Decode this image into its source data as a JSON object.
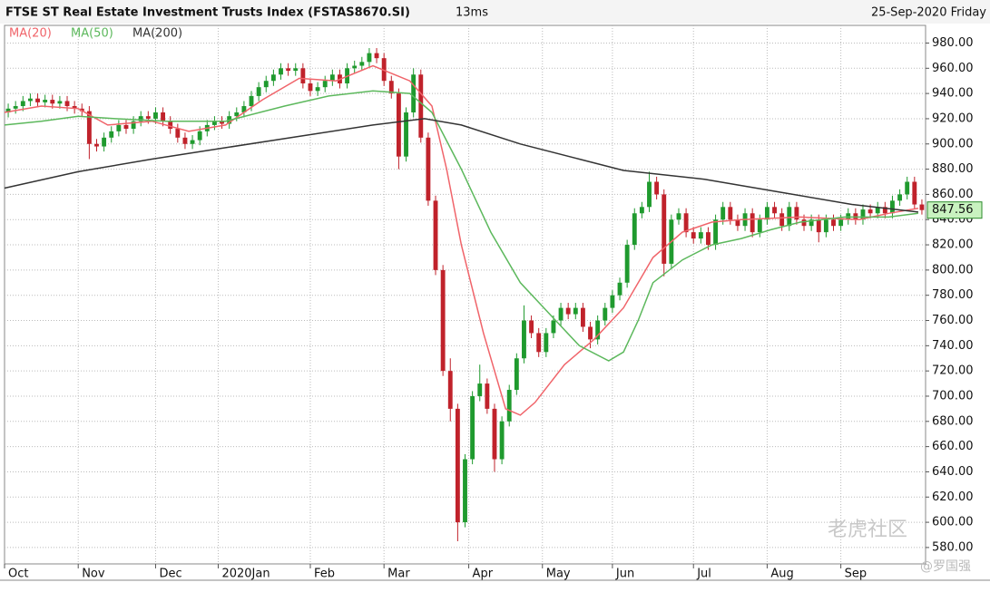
{
  "chart_data": {
    "type": "candlestick",
    "title": "FTSE ST Real Estate Investment Trusts Index (FSTAS8670.SI)",
    "timing": "13ms",
    "date_label": "25-Sep-2020 Friday",
    "watermark": "老虎社区",
    "credit": "@罗国强",
    "up_color": "#1f9a2e",
    "down_color": "#c0222b",
    "grid": true,
    "xlim": [
      0,
      125
    ],
    "xticks": [
      {
        "value": 0,
        "label": "Oct"
      },
      {
        "value": 10,
        "label": "Nov"
      },
      {
        "value": 20.5,
        "label": "Dec"
      },
      {
        "value": 29,
        "label": "2020Jan"
      },
      {
        "value": 41.5,
        "label": "Feb"
      },
      {
        "value": 51.5,
        "label": "Mar"
      },
      {
        "value": 63,
        "label": "Apr"
      },
      {
        "value": 73,
        "label": "May"
      },
      {
        "value": 82.5,
        "label": "Jun"
      },
      {
        "value": 93.5,
        "label": "Jul"
      },
      {
        "value": 103.5,
        "label": "Aug"
      },
      {
        "value": 113.5,
        "label": "Sep"
      }
    ],
    "ylim": [
      567,
      994
    ],
    "yticks": [
      {
        "value": 580,
        "label": "580.00"
      },
      {
        "value": 600,
        "label": "600.00"
      },
      {
        "value": 620,
        "label": "620.00"
      },
      {
        "value": 640,
        "label": "640.00"
      },
      {
        "value": 660,
        "label": "660.00"
      },
      {
        "value": 680,
        "label": "680.00"
      },
      {
        "value": 700,
        "label": "700.00"
      },
      {
        "value": 720,
        "label": "720.00"
      },
      {
        "value": 740,
        "label": "740.00"
      },
      {
        "value": 760,
        "label": "760.00"
      },
      {
        "value": 780,
        "label": "780.00"
      },
      {
        "value": 800,
        "label": "800.00"
      },
      {
        "value": 820,
        "label": "820.00"
      },
      {
        "value": 840,
        "label": "840.00"
      },
      {
        "value": 860,
        "label": "860.00"
      },
      {
        "value": 880,
        "label": "880.00"
      },
      {
        "value": 900,
        "label": "900.00"
      },
      {
        "value": 920,
        "label": "920.00"
      },
      {
        "value": 940,
        "label": "940.00"
      },
      {
        "value": 960,
        "label": "960.00"
      },
      {
        "value": 980,
        "label": "980.00"
      }
    ],
    "candles": {
      "open": [
        925,
        928,
        930,
        934,
        936,
        933,
        935,
        932,
        934,
        930,
        928,
        926,
        900,
        898,
        905,
        910,
        915,
        912,
        918,
        922,
        920,
        925,
        918,
        912,
        905,
        900,
        903,
        910,
        915,
        918,
        916,
        922,
        925,
        930,
        938,
        945,
        950,
        955,
        960,
        958,
        960,
        948,
        942,
        945,
        950,
        955,
        948,
        960,
        962,
        965,
        972,
        968,
        950,
        940,
        890,
        925,
        955,
        905,
        855,
        800,
        720,
        690,
        600,
        650,
        700,
        710,
        690,
        650,
        680,
        705,
        730,
        760,
        750,
        735,
        750,
        760,
        770,
        765,
        770,
        755,
        745,
        760,
        770,
        780,
        790,
        820,
        845,
        850,
        870,
        860,
        805,
        840,
        845,
        830,
        825,
        830,
        820,
        840,
        850,
        840,
        835,
        845,
        830,
        840,
        850,
        845,
        835,
        850,
        840,
        835,
        840,
        830,
        840,
        835,
        840,
        845,
        840,
        848,
        845,
        850,
        845,
        855,
        860,
        870,
        852
      ],
      "high": [
        932,
        934,
        938,
        940,
        940,
        939,
        939,
        938,
        938,
        934,
        932,
        930,
        904,
        909,
        914,
        919,
        919,
        922,
        926,
        926,
        929,
        929,
        922,
        916,
        909,
        907,
        914,
        919,
        922,
        922,
        926,
        929,
        934,
        942,
        949,
        954,
        959,
        964,
        964,
        964,
        964,
        952,
        949,
        954,
        959,
        959,
        964,
        966,
        969,
        976,
        976,
        972,
        954,
        944,
        929,
        960,
        959,
        909,
        859,
        804,
        730,
        694,
        654,
        704,
        725,
        714,
        694,
        684,
        709,
        734,
        772,
        764,
        754,
        754,
        764,
        774,
        774,
        774,
        774,
        759,
        764,
        774,
        784,
        794,
        824,
        849,
        854,
        878,
        874,
        864,
        844,
        849,
        849,
        834,
        834,
        834,
        844,
        854,
        854,
        844,
        849,
        849,
        844,
        854,
        854,
        849,
        854,
        854,
        844,
        844,
        844,
        844,
        844,
        844,
        849,
        849,
        852,
        852,
        854,
        854,
        859,
        864,
        874,
        874,
        856
      ],
      "low": [
        921,
        924,
        926,
        930,
        929,
        929,
        928,
        928,
        926,
        924,
        922,
        888,
        894,
        894,
        901,
        906,
        908,
        908,
        914,
        916,
        916,
        914,
        908,
        901,
        896,
        896,
        899,
        906,
        911,
        912,
        912,
        918,
        921,
        926,
        934,
        941,
        946,
        951,
        954,
        954,
        944,
        938,
        938,
        941,
        946,
        944,
        944,
        956,
        958,
        961,
        964,
        946,
        936,
        880,
        886,
        921,
        901,
        851,
        796,
        716,
        680,
        585,
        596,
        646,
        696,
        686,
        640,
        646,
        676,
        701,
        726,
        746,
        731,
        731,
        746,
        756,
        761,
        761,
        751,
        738,
        741,
        756,
        766,
        776,
        786,
        816,
        841,
        846,
        856,
        795,
        801,
        836,
        826,
        821,
        821,
        816,
        816,
        836,
        836,
        831,
        831,
        826,
        826,
        836,
        841,
        831,
        831,
        836,
        831,
        831,
        822,
        826,
        831,
        831,
        836,
        836,
        836,
        841,
        841,
        841,
        841,
        851,
        856,
        848,
        844
      ],
      "close": [
        928,
        930,
        934,
        936,
        933,
        935,
        932,
        934,
        930,
        928,
        926,
        900,
        898,
        905,
        910,
        915,
        912,
        918,
        922,
        920,
        925,
        918,
        912,
        905,
        900,
        903,
        910,
        915,
        918,
        916,
        922,
        925,
        930,
        938,
        945,
        950,
        955,
        960,
        958,
        960,
        948,
        942,
        945,
        950,
        955,
        948,
        960,
        962,
        965,
        972,
        968,
        950,
        940,
        890,
        925,
        955,
        905,
        855,
        800,
        720,
        690,
        600,
        650,
        700,
        710,
        690,
        650,
        680,
        705,
        730,
        760,
        750,
        735,
        750,
        760,
        770,
        765,
        770,
        755,
        745,
        760,
        770,
        780,
        790,
        820,
        845,
        850,
        870,
        860,
        805,
        840,
        845,
        830,
        825,
        830,
        820,
        840,
        850,
        840,
        835,
        845,
        830,
        840,
        850,
        845,
        835,
        850,
        840,
        835,
        840,
        830,
        840,
        835,
        840,
        845,
        840,
        848,
        845,
        850,
        845,
        855,
        860,
        870,
        852,
        847.56
      ]
    },
    "last_price": {
      "value": 847.56,
      "label": "847.56"
    },
    "series": [
      {
        "name": "MA(20)",
        "color": "#f0646a",
        "x": [
          0,
          5,
          10,
          14,
          20,
          25,
          30,
          35,
          40,
          45,
          50,
          55,
          58,
          60,
          62,
          65,
          68,
          70,
          72,
          76,
          80,
          84,
          88,
          92,
          96,
          100,
          108,
          116,
          120,
          124
        ],
        "values": [
          925,
          930,
          928,
          915,
          918,
          910,
          915,
          935,
          952,
          950,
          962,
          950,
          930,
          880,
          820,
          750,
          690,
          685,
          695,
          725,
          745,
          770,
          810,
          830,
          838,
          840,
          842,
          840,
          845,
          849
        ]
      },
      {
        "name": "MA(50)",
        "color": "#5cb85c",
        "x": [
          0,
          5,
          10,
          15,
          22,
          30,
          38,
          44,
          50,
          55,
          58,
          62,
          66,
          70,
          74,
          78,
          82,
          84,
          86,
          88,
          92,
          96,
          100,
          104,
          108,
          114,
          120,
          124
        ],
        "values": [
          915,
          918,
          922,
          920,
          918,
          918,
          930,
          938,
          942,
          940,
          925,
          880,
          830,
          790,
          765,
          740,
          728,
          735,
          760,
          790,
          808,
          820,
          825,
          832,
          838,
          842,
          842,
          845
        ]
      },
      {
        "name": "MA(200)",
        "color": "#333333",
        "x": [
          0,
          10,
          20,
          30,
          40,
          50,
          57,
          62,
          70,
          78,
          84,
          95,
          105,
          115,
          124
        ],
        "values": [
          865,
          878,
          888,
          897,
          906,
          915,
          920,
          915,
          900,
          888,
          879,
          872,
          862,
          852,
          846
        ]
      }
    ]
  }
}
